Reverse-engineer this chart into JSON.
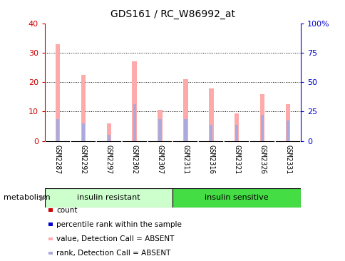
{
  "title": "GDS161 / RC_W86992_at",
  "samples": [
    "GSM2287",
    "GSM2292",
    "GSM2297",
    "GSM2302",
    "GSM2307",
    "GSM2311",
    "GSM2316",
    "GSM2321",
    "GSM2326",
    "GSM2331"
  ],
  "pink_values": [
    33,
    22.5,
    6,
    27,
    10.5,
    21,
    18,
    9.5,
    16,
    12.5
  ],
  "blue_values": [
    7.5,
    6,
    2,
    12.5,
    7.5,
    7.5,
    5.5,
    5.5,
    9,
    7
  ],
  "left_ylim": [
    0,
    40
  ],
  "right_ylim": [
    0,
    100
  ],
  "left_yticks": [
    0,
    10,
    20,
    30,
    40
  ],
  "right_yticks": [
    0,
    25,
    50,
    75,
    100
  ],
  "right_yticklabels": [
    "0",
    "25",
    "50",
    "75",
    "100%"
  ],
  "group1_label": "insulin resistant",
  "group2_label": "insulin sensitive",
  "pathway_label": "metabolism",
  "legend_items": [
    {
      "color": "#cc0000",
      "label": "count"
    },
    {
      "color": "#0000cc",
      "label": "percentile rank within the sample"
    },
    {
      "color": "#ffaaaa",
      "label": "value, Detection Call = ABSENT"
    },
    {
      "color": "#aaaadd",
      "label": "rank, Detection Call = ABSENT"
    }
  ],
  "pink_bar_width": 0.18,
  "blue_bar_width": 0.12,
  "pink_color": "#ffaaaa",
  "blue_color": "#aaaadd",
  "red_color": "#cc0000",
  "bg_color": "#ffffff",
  "group1_bg": "#ccffcc",
  "group2_bg": "#44dd44",
  "tick_label_bg": "#d0d0d0"
}
